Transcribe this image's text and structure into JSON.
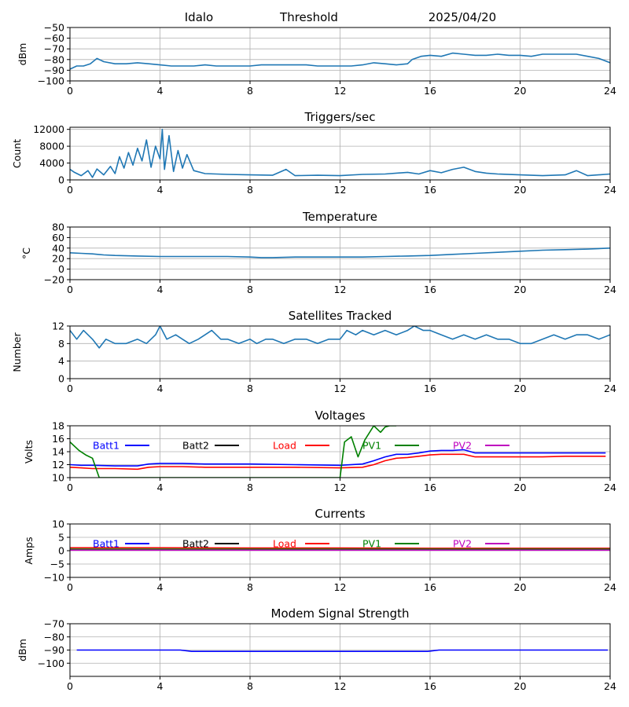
{
  "header": {
    "station": "Idalo",
    "mode": "Threshold",
    "date": "2025/04/20"
  },
  "chart_data": [
    {
      "type": "line",
      "title": "",
      "ylabel": "dBm",
      "xlim": [
        0,
        24
      ],
      "ylim": [
        -100,
        -50
      ],
      "yticks": [
        -100,
        -90,
        -80,
        -70,
        -60,
        -50
      ],
      "xticks": [
        0,
        4,
        8,
        12,
        16,
        20,
        24
      ],
      "grid": true,
      "series": [
        {
          "color": "#1f77b4",
          "x": [
            0,
            0.3,
            0.6,
            0.9,
            1.2,
            1.5,
            2,
            2.5,
            3,
            3.5,
            4,
            4.5,
            5,
            5.5,
            6,
            6.5,
            7,
            7.5,
            8,
            8.5,
            9,
            9.5,
            10,
            10.5,
            11,
            11.5,
            12,
            12.5,
            13,
            13.5,
            14,
            14.5,
            15,
            15.2,
            15.6,
            16,
            16.5,
            17,
            17.5,
            18,
            18.5,
            19,
            19.5,
            20,
            20.5,
            21,
            21.5,
            22,
            22.5,
            23,
            23.5,
            24
          ],
          "y": [
            -89,
            -86,
            -86,
            -84,
            -79,
            -82,
            -84,
            -84,
            -83,
            -84,
            -85,
            -86,
            -86,
            -86,
            -85,
            -86,
            -86,
            -86,
            -86,
            -85,
            -85,
            -85,
            -85,
            -85,
            -86,
            -86,
            -86,
            -86,
            -85,
            -83,
            -84,
            -85,
            -84,
            -80,
            -77,
            -76,
            -77,
            -74,
            -75,
            -76,
            -76,
            -75,
            -76,
            -76,
            -77,
            -75,
            -75,
            -75,
            -75,
            -77,
            -79,
            -83
          ]
        }
      ]
    },
    {
      "type": "line",
      "title": "Triggers/sec",
      "ylabel": "Count",
      "xlim": [
        0,
        24
      ],
      "ylim": [
        0,
        12500
      ],
      "yticks": [
        0,
        4000,
        8000,
        12000
      ],
      "xticks": [
        0,
        4,
        8,
        12,
        16,
        20,
        24
      ],
      "grid": true,
      "series": [
        {
          "color": "#1f77b4",
          "x": [
            0,
            0.2,
            0.5,
            0.8,
            1,
            1.2,
            1.5,
            1.8,
            2,
            2.2,
            2.4,
            2.6,
            2.8,
            3,
            3.2,
            3.4,
            3.6,
            3.8,
            4,
            4.1,
            4.2,
            4.4,
            4.6,
            4.8,
            5,
            5.2,
            5.5,
            6,
            7,
            8,
            9,
            9.6,
            10,
            11,
            12,
            13,
            14,
            15,
            15.5,
            16,
            16.5,
            17,
            17.5,
            18,
            18.5,
            19,
            20,
            21,
            22,
            22.5,
            23,
            24
          ],
          "y": [
            2500,
            1800,
            1000,
            2200,
            600,
            2600,
            1200,
            3200,
            1500,
            5500,
            2800,
            6500,
            3500,
            7500,
            4500,
            9500,
            3000,
            8000,
            5000,
            12000,
            2500,
            10500,
            2000,
            7000,
            2800,
            6000,
            2200,
            1500,
            1300,
            1200,
            1100,
            2500,
            1000,
            1100,
            1000,
            1300,
            1400,
            1800,
            1400,
            2200,
            1700,
            2500,
            3000,
            2000,
            1600,
            1400,
            1200,
            1000,
            1200,
            2200,
            1000,
            1400
          ]
        }
      ]
    },
    {
      "type": "line",
      "title": "Temperature",
      "ylabel": "°C",
      "xlim": [
        0,
        24
      ],
      "ylim": [
        -20,
        80
      ],
      "yticks": [
        -20,
        0,
        20,
        40,
        60,
        80
      ],
      "xticks": [
        0,
        4,
        8,
        12,
        16,
        20,
        24
      ],
      "grid": true,
      "series": [
        {
          "color": "#1f77b4",
          "x": [
            0,
            0.5,
            1,
            1.5,
            2,
            3,
            4,
            5,
            6,
            7,
            8,
            8.5,
            9,
            10,
            11,
            12,
            13,
            14,
            15,
            16,
            17,
            18,
            19,
            20,
            21,
            22,
            23,
            24
          ],
          "y": [
            31,
            30,
            29,
            27,
            26,
            25,
            24,
            24,
            24,
            24,
            23,
            22,
            22,
            23,
            23,
            23,
            23,
            24,
            25,
            26,
            28,
            30,
            32,
            34,
            36,
            37,
            38,
            40
          ]
        }
      ]
    },
    {
      "type": "line",
      "title": "Satellites Tracked",
      "ylabel": "Number",
      "xlim": [
        0,
        24
      ],
      "ylim": [
        0,
        12
      ],
      "yticks": [
        0,
        4,
        8,
        12
      ],
      "xticks": [
        0,
        4,
        8,
        12,
        16,
        20,
        24
      ],
      "grid": true,
      "series": [
        {
          "color": "#1f77b4",
          "x": [
            0,
            0.3,
            0.6,
            1,
            1.3,
            1.6,
            2,
            2.5,
            3,
            3.4,
            3.8,
            4,
            4.3,
            4.7,
            5,
            5.3,
            5.7,
            6,
            6.3,
            6.7,
            7,
            7.5,
            8,
            8.3,
            8.7,
            9,
            9.5,
            10,
            10.5,
            11,
            11.5,
            12,
            12.3,
            12.7,
            13,
            13.5,
            14,
            14.5,
            15,
            15.3,
            15.7,
            16,
            16.5,
            17,
            17.5,
            18,
            18.5,
            19,
            19.5,
            20,
            20.5,
            21,
            21.5,
            22,
            22.5,
            23,
            23.5,
            24
          ],
          "y": [
            11,
            9,
            11,
            9,
            7,
            9,
            8,
            8,
            9,
            8,
            10,
            12,
            9,
            10,
            9,
            8,
            9,
            10,
            11,
            9,
            9,
            8,
            9,
            8,
            9,
            9,
            8,
            9,
            9,
            8,
            9,
            9,
            11,
            10,
            11,
            10,
            11,
            10,
            11,
            12,
            11,
            11,
            10,
            9,
            10,
            9,
            10,
            9,
            9,
            8,
            8,
            9,
            10,
            9,
            10,
            10,
            9,
            10
          ]
        }
      ]
    },
    {
      "type": "line",
      "title": "Voltages",
      "ylabel": "Volts",
      "xlim": [
        0,
        24
      ],
      "ylim": [
        10,
        18
      ],
      "yticks": [
        10,
        12,
        14,
        16,
        18
      ],
      "xticks": [
        0,
        4,
        8,
        12,
        16,
        20,
        24
      ],
      "grid": true,
      "legend": "top, single row",
      "series": [
        {
          "name": "Batt1",
          "color": "#0000ff",
          "x": [
            0,
            0.5,
            1,
            2,
            3,
            3.5,
            4,
            5,
            6,
            8,
            10,
            12,
            13,
            13.5,
            14,
            14.5,
            15,
            15.5,
            16,
            16.5,
            17,
            17.5,
            18,
            19,
            20,
            21,
            22,
            23,
            23.8
          ],
          "y": [
            12.0,
            11.9,
            11.9,
            11.8,
            11.8,
            12.1,
            12.2,
            12.2,
            12.1,
            12.1,
            12.0,
            11.9,
            12.1,
            12.6,
            13.2,
            13.6,
            13.6,
            13.8,
            14.1,
            14.2,
            14.2,
            14.3,
            13.8,
            13.8,
            13.8,
            13.8,
            13.8,
            13.8,
            13.8
          ]
        },
        {
          "name": "Batt2",
          "color": "#000000",
          "x": [],
          "y": []
        },
        {
          "name": "Load",
          "color": "#ff0000",
          "x": [
            0,
            0.5,
            1,
            2,
            3,
            3.5,
            4,
            5,
            6,
            8,
            10,
            12,
            13,
            13.5,
            14,
            14.5,
            15,
            15.5,
            16,
            16.5,
            17,
            17.5,
            18,
            19,
            20,
            21,
            22,
            23,
            23.8
          ],
          "y": [
            11.6,
            11.5,
            11.4,
            11.4,
            11.3,
            11.6,
            11.7,
            11.7,
            11.6,
            11.6,
            11.6,
            11.5,
            11.6,
            12.0,
            12.6,
            13.0,
            13.1,
            13.3,
            13.5,
            13.6,
            13.6,
            13.6,
            13.2,
            13.2,
            13.2,
            13.2,
            13.3,
            13.3,
            13.3
          ]
        },
        {
          "name": "PV1",
          "color": "#008000",
          "x": [
            0,
            0.4,
            0.7,
            1.0,
            1.3,
            12.0,
            12.2,
            12.5,
            12.8,
            13.1,
            13.5,
            13.8,
            14.0,
            14.2,
            14.5
          ],
          "y": [
            15.5,
            14.2,
            13.5,
            13.0,
            10.0,
            10.0,
            15.5,
            16.3,
            13.2,
            15.8,
            18.0,
            17.0,
            17.8,
            18.0,
            18.0
          ]
        },
        {
          "name": "PV2",
          "color": "#bf00bf",
          "x": [],
          "y": []
        }
      ]
    },
    {
      "type": "line",
      "title": "Currents",
      "ylabel": "Amps",
      "xlim": [
        0,
        24
      ],
      "ylim": [
        -10,
        10
      ],
      "yticks": [
        -10,
        -5,
        0,
        5,
        10
      ],
      "xticks": [
        0,
        4,
        8,
        12,
        16,
        20,
        24
      ],
      "grid": true,
      "legend": "top, single row",
      "series": [
        {
          "name": "Batt1",
          "color": "#0000ff",
          "x": [
            0,
            24
          ],
          "y": [
            0.3,
            0.3
          ]
        },
        {
          "name": "Batt2",
          "color": "#000000",
          "x": [],
          "y": []
        },
        {
          "name": "Load",
          "color": "#ff0000",
          "x": [
            0,
            4,
            8,
            12,
            16,
            20,
            24
          ],
          "y": [
            1.1,
            1.1,
            1.0,
            1.0,
            0.9,
            0.9,
            0.9
          ]
        },
        {
          "name": "PV1",
          "color": "#008000",
          "x": [
            0,
            24
          ],
          "y": [
            0.6,
            0.6
          ]
        },
        {
          "name": "PV2",
          "color": "#bf00bf",
          "x": [
            0,
            24
          ],
          "y": [
            0.2,
            0.2
          ]
        }
      ]
    },
    {
      "type": "line",
      "title": "Modem Signal Strength",
      "ylabel": "dBm",
      "xlim": [
        0,
        24
      ],
      "ylim": [
        -110,
        -70
      ],
      "yticks": [
        -100,
        -90,
        -80,
        -70
      ],
      "xticks": [
        0,
        4,
        8,
        12,
        16,
        20,
        24
      ],
      "grid": true,
      "series": [
        {
          "color": "#0000ff",
          "x": [
            0.3,
            4.9,
            5.4,
            15.9,
            16.4,
            23.9
          ],
          "y": [
            -90,
            -90,
            -91,
            -91,
            -90,
            -90
          ]
        }
      ]
    }
  ]
}
